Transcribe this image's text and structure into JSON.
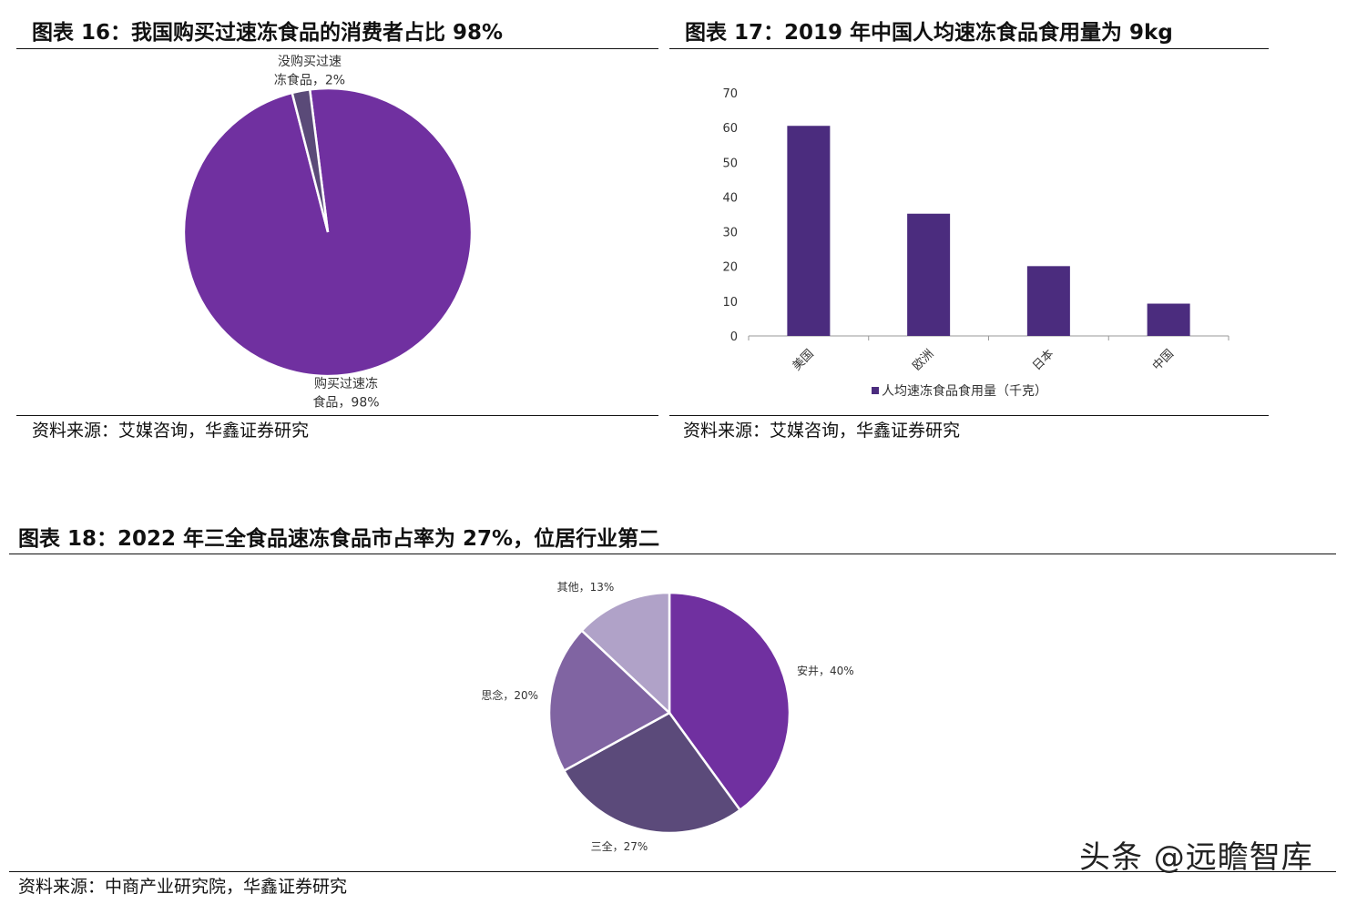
{
  "charts": {
    "c16": {
      "title": "图表 16：我国购买过速冻食品的消费者占比 98%",
      "source": "资料来源：艾媒咨询，华鑫证券研究"
    },
    "c17": {
      "title": "图表 17：2019 年中国人均速冻食品食用量为 9kg",
      "source": "资料来源：艾媒咨询，华鑫证券研究"
    },
    "c18": {
      "title": "图表 18：2022 年三全食品速冻食品市占率为 27%，位居行业第二",
      "source": "资料来源：中商产业研究院，华鑫证券研究"
    }
  },
  "watermark": "头条 @远瞻智库",
  "chart_data": [
    {
      "type": "pie",
      "slices": [
        {
          "label_lines": [
            "购买过速冻",
            "食品，98%"
          ],
          "value": 98,
          "color": "#7030a0"
        },
        {
          "label_lines": [
            "没购买过速",
            "冻食品，2%"
          ],
          "value": 2,
          "color": "#5a4a78"
        }
      ]
    },
    {
      "type": "bar",
      "categories": [
        "美国",
        "欧洲",
        "日本",
        "中国"
      ],
      "series": [
        {
          "name": "人均速冻食品食用量（千克）",
          "values": [
            60.5,
            35.2,
            20.1,
            9.3
          ],
          "color": "#4b2c7e"
        }
      ],
      "ylim": [
        0,
        70
      ],
      "yticks": [
        0,
        10,
        20,
        30,
        40,
        50,
        60,
        70
      ],
      "legend": "bottom",
      "grid": false
    },
    {
      "type": "pie",
      "slices": [
        {
          "label": "安井，40%",
          "value": 40,
          "color": "#7030a0"
        },
        {
          "label": "三全，27%",
          "value": 27,
          "color": "#5b4a7a"
        },
        {
          "label": "思念，20%",
          "value": 20,
          "color": "#8064a2"
        },
        {
          "label": "其他，13%",
          "value": 13,
          "color": "#b0a2c8"
        }
      ]
    }
  ]
}
